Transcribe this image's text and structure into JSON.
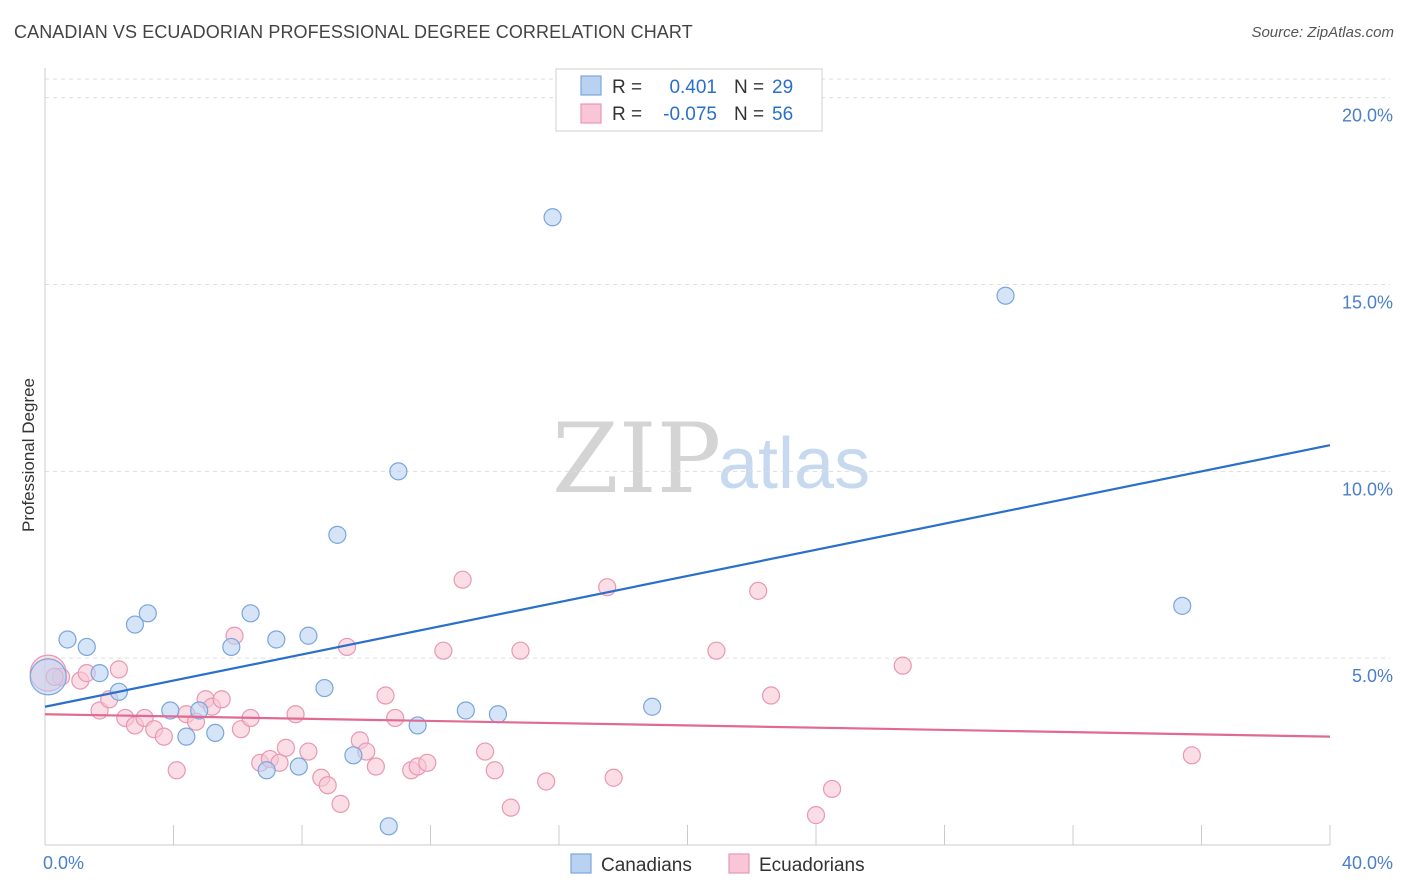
{
  "title": "CANADIAN VS ECUADORIAN PROFESSIONAL DEGREE CORRELATION CHART",
  "source": "Source: ZipAtlas.com",
  "watermark": {
    "zip": "ZIP",
    "atlas": "atlas"
  },
  "colors": {
    "canadians_fill": "#b9d2f2",
    "canadians_stroke": "#7aa6dc",
    "canadians_line": "#2a6fca",
    "ecuadorians_fill": "#f8c6d6",
    "ecuadorians_stroke": "#e898b2",
    "ecuadorians_line": "#e06a92",
    "tick_text": "#4a7fc9"
  },
  "legend": {
    "rows": [
      {
        "r_label": "R =",
        "r_value": "0.401",
        "n_label": "N =",
        "n_value": "29"
      },
      {
        "r_label": "R =",
        "r_value": "-0.075",
        "n_label": "N =",
        "n_value": "56"
      }
    ]
  },
  "chart_data": {
    "type": "scatter",
    "title": "CANADIAN VS ECUADORIAN PROFESSIONAL DEGREE CORRELATION CHART",
    "xlabel": "",
    "ylabel": "Professional Degree",
    "xlim": [
      0,
      40
    ],
    "ylim": [
      0,
      20.5
    ],
    "x_tick_labels": [
      "0.0%",
      "40.0%"
    ],
    "y_ticks": [
      5,
      10,
      15,
      20
    ],
    "y_tick_labels": [
      "5.0%",
      "10.0%",
      "15.0%",
      "20.0%"
    ],
    "grid": true,
    "legend_position": "top-center",
    "series": [
      {
        "name": "Canadians",
        "r": 0.401,
        "n": 29,
        "trend": {
          "x": [
            0,
            40
          ],
          "y": [
            3.7,
            10.7
          ]
        },
        "points": [
          {
            "x": 0.1,
            "y": 4.5,
            "big": true
          },
          {
            "x": 0.7,
            "y": 5.5
          },
          {
            "x": 1.3,
            "y": 5.3
          },
          {
            "x": 1.7,
            "y": 4.6
          },
          {
            "x": 2.3,
            "y": 4.1
          },
          {
            "x": 2.8,
            "y": 5.9
          },
          {
            "x": 3.2,
            "y": 6.2
          },
          {
            "x": 3.9,
            "y": 3.6
          },
          {
            "x": 4.4,
            "y": 2.9
          },
          {
            "x": 4.8,
            "y": 3.6
          },
          {
            "x": 5.3,
            "y": 3.0
          },
          {
            "x": 5.8,
            "y": 5.3
          },
          {
            "x": 6.4,
            "y": 6.2
          },
          {
            "x": 6.9,
            "y": 2.0
          },
          {
            "x": 7.2,
            "y": 5.5
          },
          {
            "x": 7.9,
            "y": 2.1
          },
          {
            "x": 8.2,
            "y": 5.6
          },
          {
            "x": 8.7,
            "y": 4.2
          },
          {
            "x": 9.1,
            "y": 8.3
          },
          {
            "x": 9.6,
            "y": 2.4
          },
          {
            "x": 10.7,
            "y": 0.5
          },
          {
            "x": 11.0,
            "y": 10.0
          },
          {
            "x": 11.6,
            "y": 3.2
          },
          {
            "x": 13.1,
            "y": 3.6
          },
          {
            "x": 14.1,
            "y": 3.5
          },
          {
            "x": 15.8,
            "y": 16.8
          },
          {
            "x": 18.9,
            "y": 3.7
          },
          {
            "x": 29.9,
            "y": 14.7
          },
          {
            "x": 35.4,
            "y": 6.4
          }
        ]
      },
      {
        "name": "Ecuadorians",
        "r": -0.075,
        "n": 56,
        "trend": {
          "x": [
            0,
            40
          ],
          "y": [
            3.5,
            2.9
          ]
        },
        "points": [
          {
            "x": 0.1,
            "y": 4.6,
            "big": true
          },
          {
            "x": 0.5,
            "y": 4.5
          },
          {
            "x": 1.1,
            "y": 4.4
          },
          {
            "x": 1.3,
            "y": 4.6
          },
          {
            "x": 1.7,
            "y": 3.6
          },
          {
            "x": 2.0,
            "y": 3.9
          },
          {
            "x": 2.3,
            "y": 4.7
          },
          {
            "x": 2.5,
            "y": 3.4
          },
          {
            "x": 2.8,
            "y": 3.2
          },
          {
            "x": 3.1,
            "y": 3.4
          },
          {
            "x": 3.4,
            "y": 3.1
          },
          {
            "x": 3.7,
            "y": 2.9
          },
          {
            "x": 4.1,
            "y": 2.0
          },
          {
            "x": 4.4,
            "y": 3.5
          },
          {
            "x": 4.7,
            "y": 3.3
          },
          {
            "x": 5.0,
            "y": 3.9
          },
          {
            "x": 5.2,
            "y": 3.7
          },
          {
            "x": 5.5,
            "y": 3.9
          },
          {
            "x": 5.9,
            "y": 5.6
          },
          {
            "x": 6.1,
            "y": 3.1
          },
          {
            "x": 6.4,
            "y": 3.4
          },
          {
            "x": 6.7,
            "y": 2.2
          },
          {
            "x": 7.0,
            "y": 2.3
          },
          {
            "x": 7.3,
            "y": 2.2
          },
          {
            "x": 7.5,
            "y": 2.6
          },
          {
            "x": 7.8,
            "y": 3.5
          },
          {
            "x": 8.2,
            "y": 2.5
          },
          {
            "x": 8.6,
            "y": 1.8
          },
          {
            "x": 8.8,
            "y": 1.6
          },
          {
            "x": 9.2,
            "y": 1.1
          },
          {
            "x": 9.4,
            "y": 5.3
          },
          {
            "x": 9.8,
            "y": 2.8
          },
          {
            "x": 10.0,
            "y": 2.5
          },
          {
            "x": 10.3,
            "y": 2.1
          },
          {
            "x": 10.6,
            "y": 4.0
          },
          {
            "x": 10.9,
            "y": 3.4
          },
          {
            "x": 11.4,
            "y": 2.0
          },
          {
            "x": 11.6,
            "y": 2.1
          },
          {
            "x": 11.9,
            "y": 2.2
          },
          {
            "x": 12.4,
            "y": 5.2
          },
          {
            "x": 13.0,
            "y": 7.1
          },
          {
            "x": 13.7,
            "y": 2.5
          },
          {
            "x": 14.0,
            "y": 2.0
          },
          {
            "x": 14.5,
            "y": 1.0
          },
          {
            "x": 14.8,
            "y": 5.2
          },
          {
            "x": 15.6,
            "y": 1.7
          },
          {
            "x": 17.5,
            "y": 6.9
          },
          {
            "x": 17.7,
            "y": 1.8
          },
          {
            "x": 20.9,
            "y": 5.2
          },
          {
            "x": 22.2,
            "y": 6.8
          },
          {
            "x": 22.6,
            "y": 4.0
          },
          {
            "x": 24.0,
            "y": 0.8
          },
          {
            "x": 24.5,
            "y": 1.5
          },
          {
            "x": 26.7,
            "y": 4.8
          },
          {
            "x": 35.7,
            "y": 2.4
          },
          {
            "x": 0.3,
            "y": 4.5
          }
        ]
      }
    ]
  }
}
